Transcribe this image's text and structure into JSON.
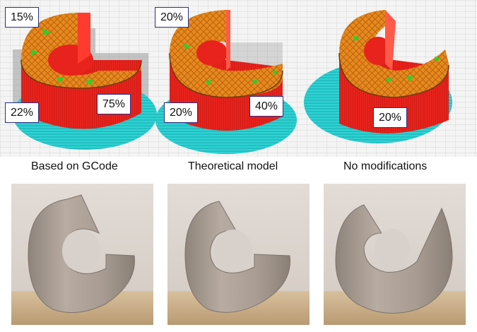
{
  "panels": [
    {
      "caption": "Based on GCode",
      "percent_labels": [
        "15%",
        "22%",
        "75%"
      ]
    },
    {
      "caption": "Theoretical model",
      "percent_labels": [
        "20%",
        "20%",
        "40%"
      ]
    },
    {
      "caption": "No modifications",
      "percent_labels": [
        "20%"
      ]
    }
  ],
  "colors": {
    "wall": "#e8221c",
    "wall_dark": "#b41612",
    "infill": "#e8891c",
    "infill_light": "#f0a640",
    "support_green": "#2ccf2c",
    "brim": "#2ed3d3",
    "bed_grid": "#d6d6d6",
    "print_material": "#b3a69c",
    "photo_background": "#d9d2cc",
    "table": "#c8ad8a"
  }
}
